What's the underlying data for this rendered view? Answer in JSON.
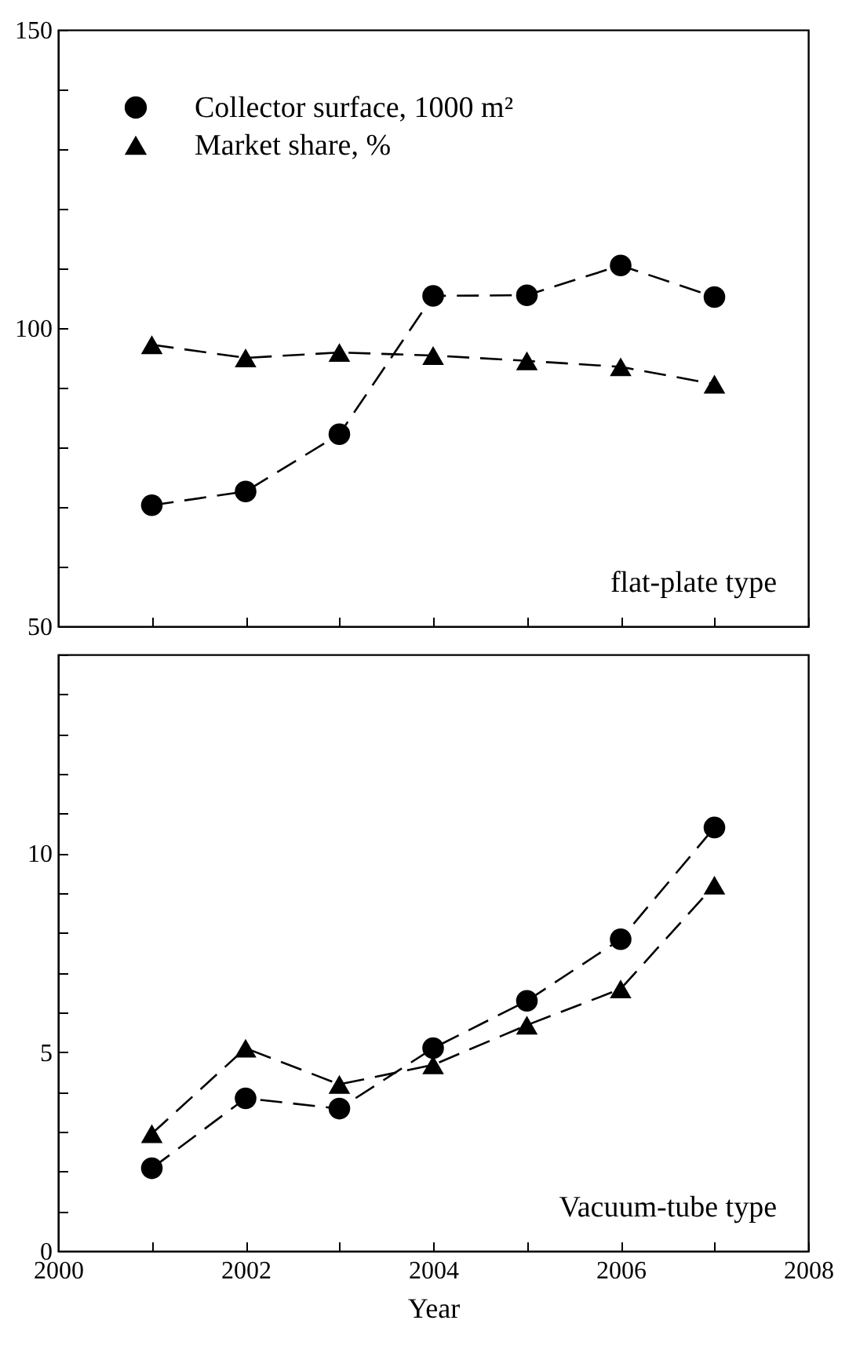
{
  "chart_data": [
    {
      "type": "line",
      "x": [
        2001,
        2002,
        2003,
        2004,
        2005,
        2006,
        2007
      ],
      "xlim": [
        2000,
        2008
      ],
      "xticks": [
        2000,
        {
          "value": 2001,
          "label": null
        },
        2002,
        {
          "value": 2003,
          "label": null
        },
        2004,
        {
          "value": 2005,
          "label": null
        },
        2006,
        {
          "value": 2007,
          "label": null
        },
        2008
      ],
      "ylim": [
        50,
        150
      ],
      "yticks": [
        50,
        {
          "value": 60,
          "label": null
        },
        {
          "value": 70,
          "label": null
        },
        {
          "value": 80,
          "label": null
        },
        {
          "value": 90,
          "label": null
        },
        100,
        {
          "value": 110,
          "label": null
        },
        {
          "value": 120,
          "label": null
        },
        {
          "value": 130,
          "label": null
        },
        {
          "value": 140,
          "label": null
        },
        150
      ],
      "tick_labels": "y",
      "legend": "top left",
      "line_style": "dashed",
      "annotations": [
        "flat-plate type"
      ],
      "series": [
        {
          "name": "Collector surface, 1000 m²",
          "color": "#000000",
          "marker": "circle",
          "values": [
            70.3,
            72.6,
            82.2,
            105.4,
            105.5,
            110.5,
            105.2
          ]
        },
        {
          "name": "Market share, %",
          "color": "#000000",
          "marker": "triangle",
          "values": [
            97.2,
            95,
            95.9,
            95.4,
            94.5,
            93.5,
            90.6
          ]
        }
      ]
    },
    {
      "type": "line",
      "x": [
        2001,
        2002,
        2003,
        2004,
        2005,
        2006,
        2007
      ],
      "xlim": [
        2000,
        2008
      ],
      "xticks": [
        2000,
        {
          "value": 2001,
          "label": null
        },
        2002,
        {
          "value": 2003,
          "label": null
        },
        2004,
        {
          "value": 2005,
          "label": null
        },
        2006,
        {
          "value": 2007,
          "label": null
        },
        2008
      ],
      "ylim": [
        0,
        15
      ],
      "yticks": [
        0,
        {
          "value": 1,
          "label": null
        },
        {
          "value": 2,
          "label": null
        },
        {
          "value": 3,
          "label": null
        },
        {
          "value": 4,
          "label": null
        },
        5,
        {
          "value": 6,
          "label": null
        },
        {
          "value": 7,
          "label": null
        },
        {
          "value": 8,
          "label": null
        },
        {
          "value": 9,
          "label": null
        },
        10,
        {
          "value": 11,
          "label": null
        },
        {
          "value": 12,
          "label": null
        },
        {
          "value": 13,
          "label": null
        },
        {
          "value": 14,
          "label": null
        },
        {
          "value": 15,
          "label": null
        }
      ],
      "xlabel": "Year",
      "line_style": "dashed",
      "annotations": [
        "Vacuum-tube type"
      ],
      "series": [
        {
          "color": "#000000",
          "marker": "circle",
          "values": [
            2.08,
            3.84,
            3.58,
            5.1,
            6.29,
            7.84,
            10.65
          ]
        },
        {
          "color": "#000000",
          "marker": "triangle",
          "values": [
            2.95,
            5.1,
            4.19,
            4.68,
            5.68,
            6.59,
            9.2
          ]
        }
      ]
    }
  ]
}
